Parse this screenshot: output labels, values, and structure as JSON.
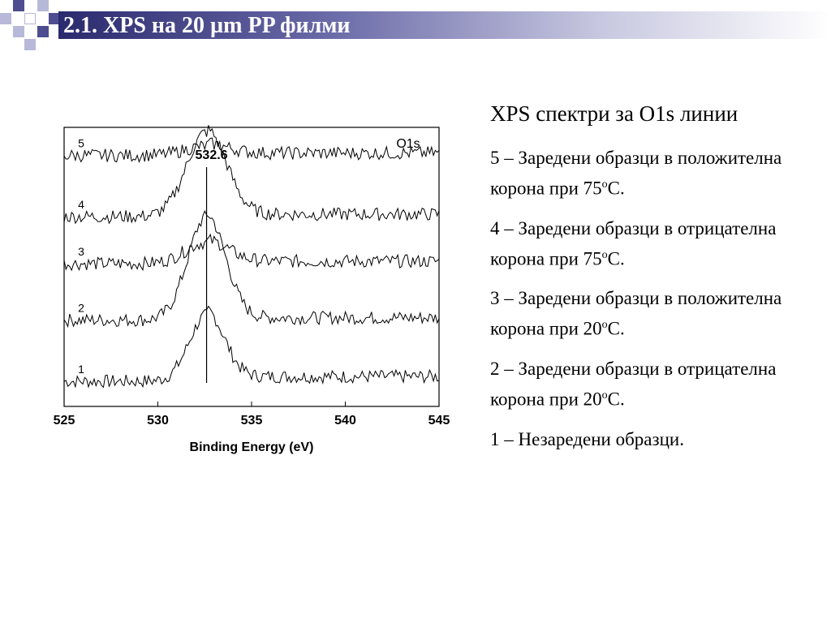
{
  "slide": {
    "title": "2.1. XPS на 20 µm PP филми",
    "colors": {
      "title_dark": "#2a2a6e",
      "square_dark": "#4d4d8f",
      "square_light": "#b8b8d9"
    }
  },
  "right_panel": {
    "heading": "XPS спектри за O1s линии",
    "items": [
      {
        "text": "5 – Заредени образци в положителна корона при 75",
        "sup": "o",
        "tail": "C."
      },
      {
        "text": "4 – Заредени образци в отрицателна корона при 75",
        "sup": "o",
        "tail": "C."
      },
      {
        "text": "3 – Заредени образци в положителна корона при 20",
        "sup": "o",
        "tail": "C."
      },
      {
        "text": "2 – Заредени образци в отрицателна корона при 20",
        "sup": "o",
        "tail": "C."
      },
      {
        "text": "1 – Незаредени образци.",
        "sup": "",
        "tail": ""
      }
    ]
  },
  "chart_data": {
    "type": "line",
    "xlabel": "Binding Energy (eV)",
    "ylabel": "",
    "xlim": [
      525,
      545
    ],
    "xticks": [
      525,
      530,
      535,
      540,
      545
    ],
    "legend_label": "O1s",
    "annotation": {
      "text": "532.6",
      "x": 532.6
    },
    "grid": false,
    "series": [
      {
        "name": "1",
        "baseline": 0.0,
        "peak": 1.4,
        "center": 532.6,
        "width": 1.3,
        "tail": 0.1
      },
      {
        "name": "2",
        "baseline": 1.3,
        "peak": 2.2,
        "center": 532.6,
        "width": 1.4,
        "tail": 0.05
      },
      {
        "name": "3",
        "baseline": 2.5,
        "peak": 0.45,
        "center": 532.6,
        "width": 1.6,
        "tail": 0.05
      },
      {
        "name": "4",
        "baseline": 3.5,
        "peak": 1.8,
        "center": 532.6,
        "width": 1.5,
        "tail": 0.05
      },
      {
        "name": "5",
        "baseline": 4.8,
        "peak": 0.2,
        "center": 532.6,
        "width": 1.6,
        "tail": 0.05
      }
    ]
  }
}
